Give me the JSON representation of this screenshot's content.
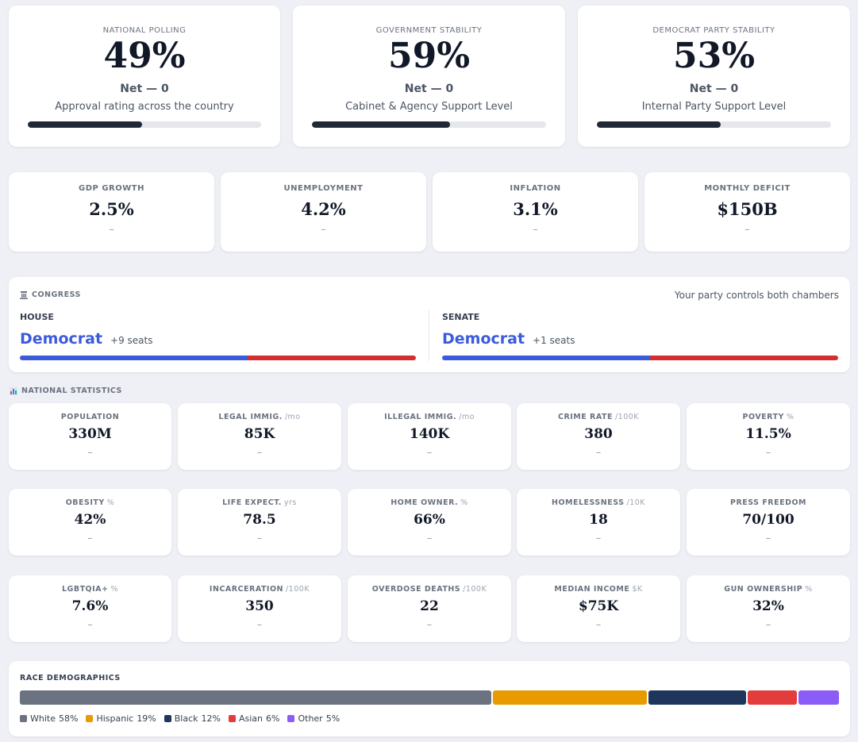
{
  "top_cards": [
    {
      "title": "NATIONAL POLLING",
      "value": 49,
      "value_label": "49%",
      "net": "Net — 0",
      "subtitle": "Approval rating across the country"
    },
    {
      "title": "GOVERNMENT STABILITY",
      "value": 59,
      "value_label": "59%",
      "net": "Net — 0",
      "subtitle": "Cabinet & Agency Support Level"
    },
    {
      "title": "DEMOCRAT PARTY STABILITY",
      "value": 53,
      "value_label": "53%",
      "net": "Net — 0",
      "subtitle": "Internal Party Support Level"
    }
  ],
  "economy": [
    {
      "title": "GDP GROWTH",
      "value": "2.5%",
      "change": "–"
    },
    {
      "title": "UNEMPLOYMENT",
      "value": "4.2%",
      "change": "–"
    },
    {
      "title": "INFLATION",
      "value": "3.1%",
      "change": "–"
    },
    {
      "title": "MONTHLY DEFICIT",
      "value": "$150B",
      "change": "–"
    }
  ],
  "congress": {
    "title": "CONGRESS",
    "status": "Your party controls both chambers",
    "chambers": [
      {
        "name": "HOUSE",
        "party": "Democrat",
        "seats": "+9 seats",
        "share": 57.5
      },
      {
        "name": "SENATE",
        "party": "Democrat",
        "seats": "+1 seats",
        "share": 52.5
      }
    ]
  },
  "national_statistics": {
    "title": "NATIONAL STATISTICS",
    "stats": [
      {
        "title": "POPULATION",
        "value": "330M",
        "change": "–"
      },
      {
        "title": "LEGAL IMMIG.",
        "unit": "/mo",
        "value": "85K",
        "change": "–"
      },
      {
        "title": "ILLEGAL IMMIG.",
        "unit": "/mo",
        "value": "140K",
        "change": "–"
      },
      {
        "title": "CRIME RATE",
        "unit": "/100K",
        "value": "380",
        "change": "–"
      },
      {
        "title": "POVERTY",
        "unit": "%",
        "value": "11.5%",
        "change": "–"
      },
      {
        "title": "OBESITY",
        "unit": "%",
        "value": "42%",
        "change": "–"
      },
      {
        "title": "LIFE EXPECT.",
        "unit": "yrs",
        "value": "78.5",
        "change": "–"
      },
      {
        "title": "HOME OWNER.",
        "unit": "%",
        "value": "66%",
        "change": "–"
      },
      {
        "title": "HOMELESSNESS",
        "unit": "/10K",
        "value": "18",
        "change": "–"
      },
      {
        "title": "PRESS FREEDOM",
        "value": "70/100",
        "change": "–"
      },
      {
        "title": "LGBTQIA+",
        "unit": "%",
        "value": "7.6%",
        "change": "–"
      },
      {
        "title": "INCARCERATION",
        "unit": "/100K",
        "value": "350",
        "change": "–"
      },
      {
        "title": "OVERDOSE DEATHS",
        "unit": "/100K",
        "value": "22",
        "change": "–"
      },
      {
        "title": "MEDIAN INCOME",
        "unit": "$K",
        "value": "$75K",
        "change": "–"
      },
      {
        "title": "GUN OWNERSHIP",
        "unit": "%",
        "value": "32%",
        "change": "–"
      }
    ]
  },
  "race_demographics": {
    "title": "RACE DEMOGRAPHICS",
    "segments": [
      {
        "name": "White",
        "value": 58,
        "value_label": "58%",
        "color": "#6b7280"
      },
      {
        "name": "Hispanic",
        "value": 19,
        "value_label": "19%",
        "color": "#e89b00"
      },
      {
        "name": "Black",
        "value": 12,
        "value_label": "12%",
        "color": "#1f365c"
      },
      {
        "name": "Asian",
        "value": 6,
        "value_label": "6%",
        "color": "#e23c3c"
      },
      {
        "name": "Other",
        "value": 5,
        "value_label": "5%",
        "color": "#8b5cf6"
      }
    ]
  }
}
